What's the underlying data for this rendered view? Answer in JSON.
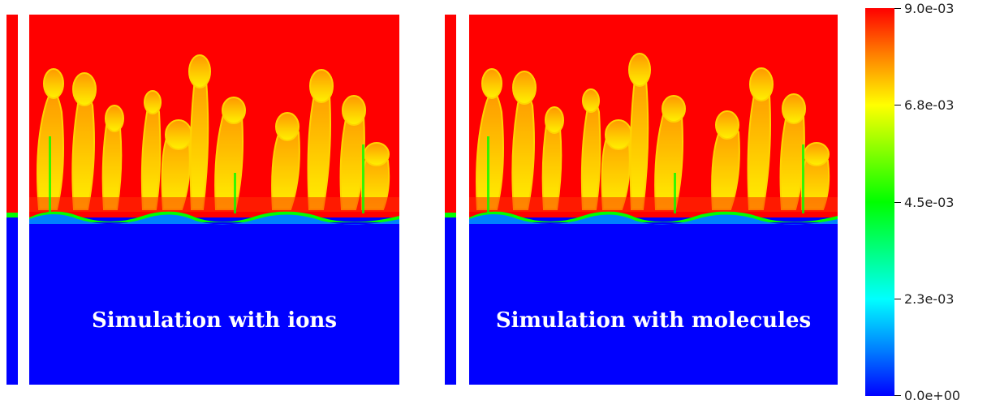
{
  "panels": [
    {
      "label": "Simulation with ions"
    },
    {
      "label": "Simulation with molecules"
    }
  ],
  "colorbar": {
    "ticks": [
      "9.0e-03",
      "6.8e-03",
      "4.5e-03",
      "2.3e-03",
      "0.0e+00"
    ],
    "min": 0.0,
    "max": 0.009,
    "colormap": [
      "#0000ff",
      "#00ffff",
      "#00ff00",
      "#ffff00",
      "#ff0000"
    ]
  },
  "colors": {
    "upper": "#ff0000",
    "lower": "#0000ff",
    "interface": "#00ff00"
  }
}
